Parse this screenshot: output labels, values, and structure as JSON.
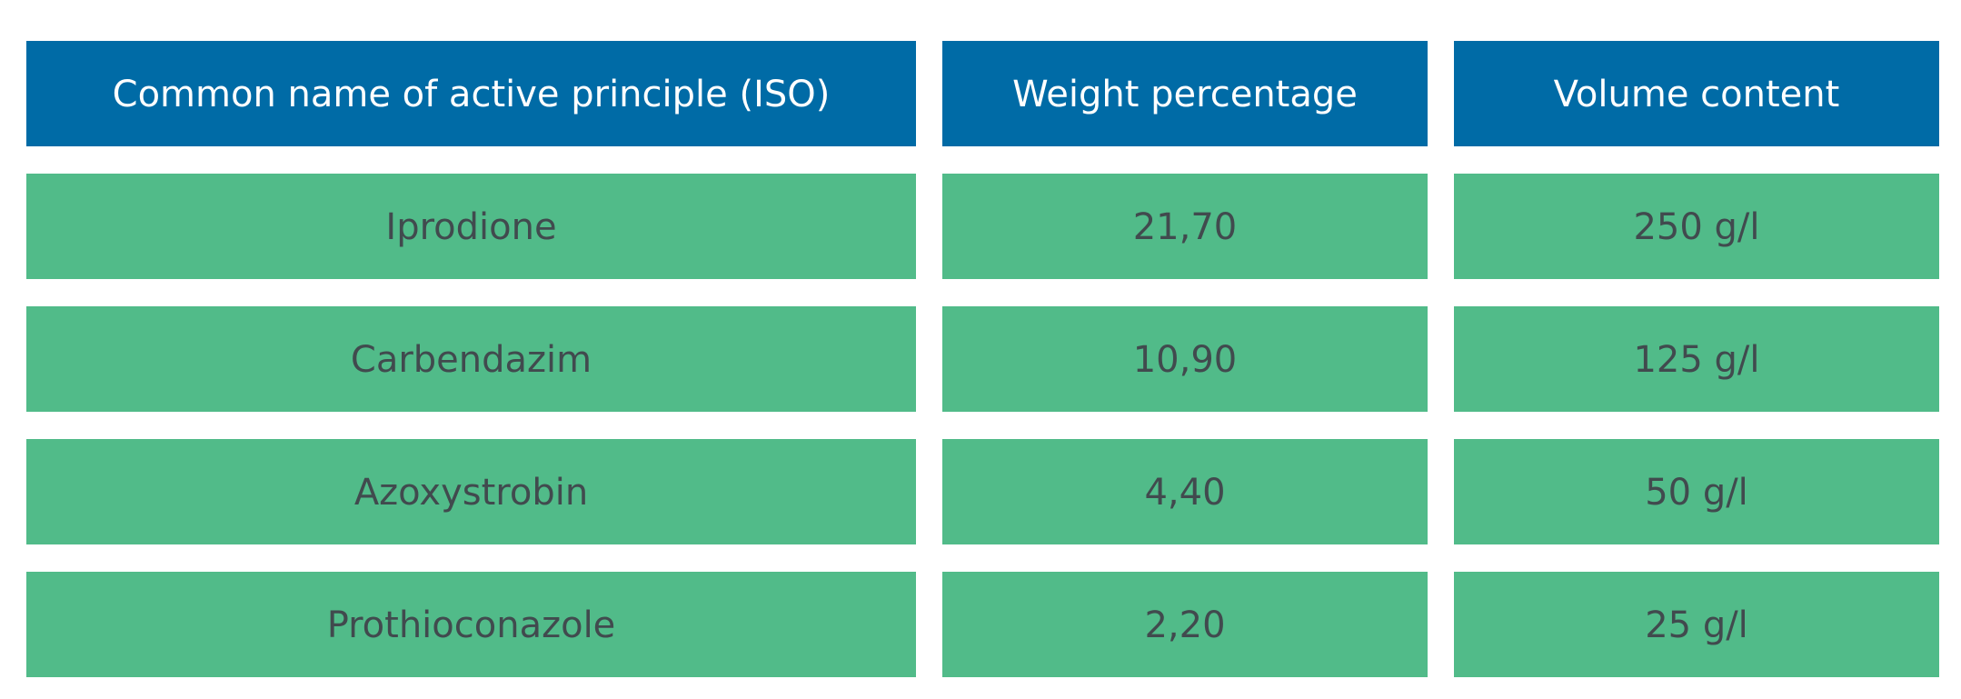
{
  "table": {
    "headers": [
      "Common name of active principle (ISO)",
      "Weight percentage",
      "Volume content"
    ],
    "rows": [
      [
        "Iprodione",
        "21,70",
        "250 g/l"
      ],
      [
        "Carbendazim",
        "10,90",
        "125 g/l"
      ],
      [
        "Azoxystrobin",
        "4,40",
        "50 g/l"
      ],
      [
        "Prothioconazole",
        "2,20",
        "25 g/l"
      ]
    ],
    "colors": {
      "header_bg": "#006ba6",
      "header_text": "#ffffff",
      "row_bg": "#51bb89",
      "row_text": "#414a4e"
    }
  }
}
